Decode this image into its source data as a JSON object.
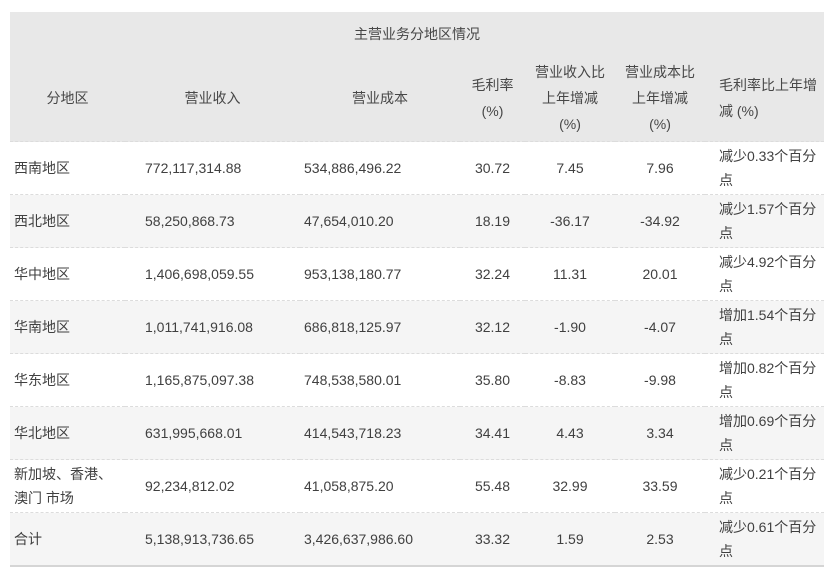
{
  "table": {
    "title": "主营业务分地区情况",
    "columns": [
      {
        "id": "region",
        "label": "分地区",
        "lines": [
          "分地区"
        ]
      },
      {
        "id": "revenue",
        "label": "营业收入",
        "lines": [
          "营业收入"
        ]
      },
      {
        "id": "cost",
        "label": "营业成本",
        "lines": [
          "营业成本"
        ]
      },
      {
        "id": "gross_margin",
        "label": "毛利率 (%)",
        "lines": [
          "毛利率",
          "(%)"
        ]
      },
      {
        "id": "revenue_yoy",
        "label": "营业收入比上年增减 (%)",
        "lines": [
          "营业收入比",
          "上年增减",
          "(%)"
        ]
      },
      {
        "id": "cost_yoy",
        "label": "营业成本比上年增减 (%)",
        "lines": [
          "营业成本比",
          "上年增减",
          "(%)"
        ]
      },
      {
        "id": "margin_yoy",
        "label": "毛利率比上年增减 (%)",
        "lines": [
          "毛利率比上年增",
          "减 (%)"
        ]
      }
    ],
    "rows": [
      {
        "region": "西南地区",
        "revenue": "772,117,314.88",
        "cost": "534,886,496.22",
        "gross_margin": "30.72",
        "revenue_yoy": "7.45",
        "cost_yoy": "7.96",
        "margin_yoy": "减少0.33个百分点"
      },
      {
        "region": "西北地区",
        "revenue": "58,250,868.73",
        "cost": "47,654,010.20",
        "gross_margin": "18.19",
        "revenue_yoy": "-36.17",
        "cost_yoy": "-34.92",
        "margin_yoy": "减少1.57个百分点"
      },
      {
        "region": "华中地区",
        "revenue": "1,406,698,059.55",
        "cost": "953,138,180.77",
        "gross_margin": "32.24",
        "revenue_yoy": "11.31",
        "cost_yoy": "20.01",
        "margin_yoy": "减少4.92个百分点"
      },
      {
        "region": "华南地区",
        "revenue": "1,011,741,916.08",
        "cost": "686,818,125.97",
        "gross_margin": "32.12",
        "revenue_yoy": "-1.90",
        "cost_yoy": "-4.07",
        "margin_yoy": "增加1.54个百分点"
      },
      {
        "region": "华东地区",
        "revenue": "1,165,875,097.38",
        "cost": "748,538,580.01",
        "gross_margin": "35.80",
        "revenue_yoy": "-8.83",
        "cost_yoy": "-9.98",
        "margin_yoy": "增加0.82个百分点"
      },
      {
        "region": "华北地区",
        "revenue": "631,995,668.01",
        "cost": "414,543,718.23",
        "gross_margin": "34.41",
        "revenue_yoy": "4.43",
        "cost_yoy": "3.34",
        "margin_yoy": "增加0.69个百分点"
      },
      {
        "region": "新加坡、香港、澳门 市场",
        "revenue": "92,234,812.02",
        "cost": "41,058,875.20",
        "gross_margin": "55.48",
        "revenue_yoy": "32.99",
        "cost_yoy": "33.59",
        "margin_yoy": "减少0.21个百分点"
      },
      {
        "region": "合计",
        "revenue": "5,138,913,736.65",
        "cost": "3,426,637,986.60",
        "gross_margin": "33.32",
        "revenue_yoy": "1.59",
        "cost_yoy": "2.53",
        "margin_yoy": "减少0.61个百分点"
      }
    ]
  },
  "colors": {
    "band_bg": "#e8e8e8",
    "zebra_bg": "#f5f5f5",
    "text": "#404040",
    "bottom_border": "#d5d5d5",
    "row_separator": "#dcdcdc"
  }
}
